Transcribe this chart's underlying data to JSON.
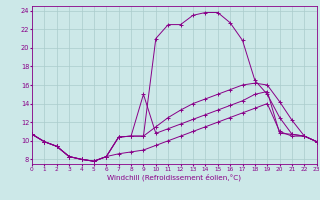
{
  "xlabel": "Windchill (Refroidissement éolien,°C)",
  "bg_color": "#cce8e8",
  "line_color": "#880088",
  "grid_color": "#aacccc",
  "xlim": [
    0,
    23
  ],
  "ylim": [
    7.5,
    24.5
  ],
  "xtick_vals": [
    0,
    1,
    2,
    3,
    4,
    5,
    6,
    7,
    8,
    9,
    10,
    11,
    12,
    13,
    14,
    15,
    16,
    17,
    18,
    19,
    20,
    21,
    22,
    23
  ],
  "ytick_vals": [
    8,
    10,
    12,
    14,
    16,
    18,
    20,
    22,
    24
  ],
  "series": [
    [
      10.7,
      9.9,
      9.4,
      8.3,
      8.0,
      7.8,
      8.3,
      10.4,
      10.5,
      10.5,
      21.0,
      22.5,
      22.5,
      23.5,
      23.8,
      23.8,
      22.7,
      20.8,
      16.5,
      15.0,
      12.5,
      10.7,
      10.5,
      9.9
    ],
    [
      10.7,
      9.9,
      9.4,
      8.3,
      8.0,
      7.8,
      8.3,
      10.4,
      10.5,
      15.0,
      10.8,
      11.3,
      11.8,
      12.3,
      12.8,
      13.3,
      13.8,
      14.3,
      15.0,
      15.3,
      10.8,
      10.7,
      10.5,
      9.9
    ],
    [
      10.7,
      9.9,
      9.4,
      8.3,
      8.0,
      7.8,
      8.3,
      10.4,
      10.5,
      10.5,
      11.5,
      12.5,
      13.3,
      14.0,
      14.5,
      15.0,
      15.5,
      16.0,
      16.2,
      16.0,
      14.2,
      12.2,
      10.5,
      9.9
    ],
    [
      10.7,
      9.9,
      9.4,
      8.3,
      8.0,
      7.8,
      8.3,
      8.6,
      8.8,
      9.0,
      9.5,
      10.0,
      10.5,
      11.0,
      11.5,
      12.0,
      12.5,
      13.0,
      13.5,
      14.0,
      11.0,
      10.5,
      10.5,
      9.9
    ]
  ]
}
